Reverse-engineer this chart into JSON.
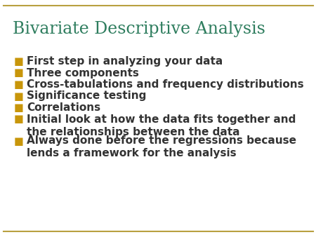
{
  "title": "Bivariate Descriptive Analysis",
  "title_color": "#2E7D5E",
  "title_fontsize": 17,
  "title_font": "serif",
  "background_color": "#FFFFFF",
  "border_color": "#B8A040",
  "bullet_color": "#C8960A",
  "text_color": "#333333",
  "bullet_fontsize": 11,
  "bullets": [
    "First step in analyzing your data",
    "Three components",
    "Cross-tabulations and frequency distributions",
    "Significance testing",
    "Correlations",
    "Initial look at how the data fits together and\nthe relationships between the data",
    "Always done before the regressions because\nlends a framework for the analysis"
  ]
}
